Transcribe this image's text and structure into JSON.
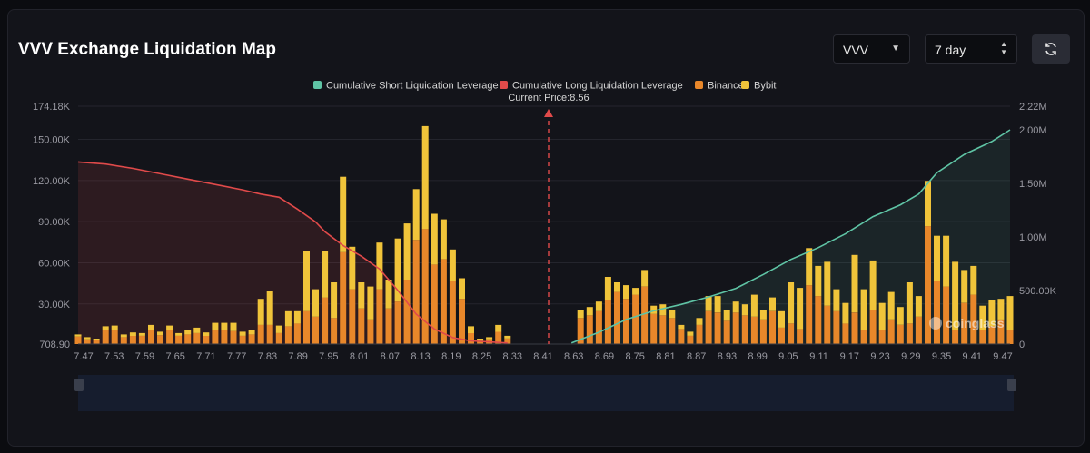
{
  "header": {
    "title": "VVV Exchange Liquidation Map",
    "symbol_select": "VVV",
    "period_select": "7 day",
    "refresh_icon": "refresh-icon"
  },
  "watermark": "coinglass",
  "colors": {
    "short_line": "#5fc4a5",
    "long_line": "#e04a4a",
    "binance": "#e8872a",
    "bybit": "#f0c43a",
    "current_price_marker": "#e04a4a"
  },
  "chart_data": {
    "type": "bar",
    "legend": [
      {
        "name": "Cumulative Short Liquidation Leverage",
        "color": "#5fc4a5"
      },
      {
        "name": "Cumulative Long Liquidation Leverage",
        "color": "#e04a4a"
      },
      {
        "name": "Binance",
        "color": "#e8872a"
      },
      {
        "name": "Bybit",
        "color": "#f0c43a"
      }
    ],
    "current_price_label": "Current Price:8.56",
    "current_price": 8.56,
    "x_tick_labels": [
      "7.47",
      "7.53",
      "7.59",
      "7.65",
      "7.71",
      "7.77",
      "7.83",
      "7.89",
      "7.95",
      "8.01",
      "8.07",
      "8.13",
      "8.19",
      "8.25",
      "8.33",
      "8.41",
      "8.63",
      "8.69",
      "8.75",
      "8.81",
      "8.87",
      "8.93",
      "8.99",
      "9.05",
      "9.11",
      "9.17",
      "9.23",
      "9.29",
      "9.35",
      "9.41",
      "9.47"
    ],
    "y_left_ticks": [
      "174.18K",
      "150.00K",
      "120.00K",
      "90.00K",
      "60.00K",
      "30.00K",
      "708.90"
    ],
    "y_left_values": [
      174180,
      150000,
      120000,
      90000,
      60000,
      30000,
      708.9
    ],
    "y_left_range": [
      708.9,
      174180
    ],
    "y_right_ticks": [
      "2.22M",
      "2.00M",
      "1.50M",
      "1.00M",
      "500.00K",
      "0"
    ],
    "y_right_values": [
      2220000,
      2000000,
      1500000,
      1000000,
      500000,
      0
    ],
    "y_right_range": [
      0,
      2220000
    ],
    "grid": true,
    "legend_position": "top-center",
    "bar_stack": [
      [
        7.47,
        5500,
        1500
      ],
      [
        7.49,
        3500,
        1500
      ],
      [
        7.51,
        3000,
        1000
      ],
      [
        7.53,
        10000,
        3000
      ],
      [
        7.55,
        10000,
        3500
      ],
      [
        7.57,
        5000,
        2000
      ],
      [
        7.59,
        6000,
        2500
      ],
      [
        7.61,
        6000,
        2000
      ],
      [
        7.63,
        10000,
        4000
      ],
      [
        7.65,
        6500,
        2500
      ],
      [
        7.67,
        10000,
        3500
      ],
      [
        7.69,
        6000,
        2000
      ],
      [
        7.71,
        7000,
        3000
      ],
      [
        7.73,
        8000,
        4000
      ],
      [
        7.75,
        6000,
        2500
      ],
      [
        7.77,
        10000,
        5500
      ],
      [
        7.79,
        10000,
        5500
      ],
      [
        7.81,
        9500,
        6000
      ],
      [
        7.83,
        6000,
        3000
      ],
      [
        7.85,
        7000,
        3000
      ],
      [
        7.87,
        14000,
        19000
      ],
      [
        7.89,
        14000,
        25000
      ],
      [
        7.91,
        8000,
        5500
      ],
      [
        7.93,
        13000,
        11000
      ],
      [
        7.95,
        15000,
        9000
      ],
      [
        7.97,
        24000,
        44000
      ],
      [
        7.99,
        20000,
        20000
      ],
      [
        8.01,
        34000,
        34000
      ],
      [
        8.03,
        19000,
        26000
      ],
      [
        8.05,
        67000,
        55000
      ],
      [
        8.07,
        40000,
        31000
      ],
      [
        8.09,
        26000,
        19000
      ],
      [
        8.11,
        18000,
        24000
      ],
      [
        8.13,
        40000,
        34000
      ],
      [
        8.15,
        26000,
        21000
      ],
      [
        8.17,
        31000,
        46000
      ],
      [
        8.19,
        47000,
        41000
      ],
      [
        8.21,
        76000,
        37000
      ],
      [
        8.23,
        84000,
        75000
      ],
      [
        8.25,
        58000,
        37000
      ],
      [
        8.27,
        62000,
        29000
      ],
      [
        8.29,
        46000,
        23000
      ],
      [
        8.31,
        33000,
        15000
      ],
      [
        8.33,
        8000,
        5000
      ],
      [
        8.35,
        2500,
        1500
      ],
      [
        8.37,
        3500,
        1500
      ],
      [
        8.39,
        9000,
        5000
      ],
      [
        8.41,
        4000,
        2000
      ],
      [
        8.57,
        19000,
        6000
      ],
      [
        8.59,
        21000,
        6000
      ],
      [
        8.61,
        24000,
        7000
      ],
      [
        8.63,
        32000,
        17000
      ],
      [
        8.65,
        38000,
        7000
      ],
      [
        8.67,
        33000,
        10000
      ],
      [
        8.69,
        36000,
        5000
      ],
      [
        8.71,
        42000,
        12000
      ],
      [
        8.73,
        22000,
        6000
      ],
      [
        8.75,
        21000,
        8000
      ],
      [
        8.77,
        19000,
        6000
      ],
      [
        8.79,
        11000,
        3000
      ],
      [
        8.81,
        6000,
        3000
      ],
      [
        8.83,
        14000,
        5000
      ],
      [
        8.85,
        24000,
        11000
      ],
      [
        8.87,
        23000,
        12000
      ],
      [
        8.89,
        17000,
        8000
      ],
      [
        8.91,
        23000,
        8000
      ],
      [
        8.93,
        21000,
        8000
      ],
      [
        8.95,
        20000,
        16000
      ],
      [
        8.97,
        18000,
        7000
      ],
      [
        8.99,
        24000,
        10000
      ],
      [
        9.01,
        12000,
        12000
      ],
      [
        9.03,
        15000,
        30000
      ],
      [
        9.05,
        11000,
        30000
      ],
      [
        9.07,
        43000,
        27000
      ],
      [
        9.09,
        35000,
        22000
      ],
      [
        9.11,
        28000,
        32000
      ],
      [
        9.13,
        24000,
        16000
      ],
      [
        9.15,
        15000,
        15000
      ],
      [
        9.17,
        23000,
        42000
      ],
      [
        9.19,
        10000,
        30000
      ],
      [
        9.21,
        25000,
        36000
      ],
      [
        9.23,
        10000,
        20000
      ],
      [
        9.25,
        18000,
        20000
      ],
      [
        9.27,
        14000,
        13000
      ],
      [
        9.29,
        15000,
        30000
      ],
      [
        9.31,
        20000,
        15000
      ],
      [
        9.33,
        86000,
        33000
      ],
      [
        9.35,
        46000,
        33000
      ],
      [
        9.37,
        42000,
        37000
      ],
      [
        9.39,
        10000,
        50000
      ],
      [
        9.41,
        30000,
        24000
      ],
      [
        9.43,
        36000,
        21000
      ],
      [
        9.45,
        10000,
        18000
      ],
      [
        9.47,
        13000,
        19000
      ],
      [
        9.49,
        18000,
        15000
      ],
      [
        9.51,
        10000,
        25000
      ]
    ],
    "long_cumulative": {
      "x": [
        7.47,
        7.53,
        7.59,
        7.65,
        7.71,
        7.77,
        7.83,
        7.87,
        7.91,
        7.95,
        7.99,
        8.01,
        8.05,
        8.09,
        8.13,
        8.17,
        8.21,
        8.25,
        8.29,
        8.33,
        8.37,
        8.41
      ],
      "y": [
        1700000,
        1680000,
        1640000,
        1590000,
        1540000,
        1490000,
        1440000,
        1400000,
        1370000,
        1260000,
        1140000,
        1050000,
        920000,
        820000,
        700000,
        500000,
        280000,
        140000,
        60000,
        30000,
        20000,
        10000
      ]
    },
    "short_cumulative": {
      "x": [
        8.55,
        8.61,
        8.67,
        8.73,
        8.79,
        8.85,
        8.91,
        8.97,
        9.03,
        9.09,
        9.15,
        9.21,
        9.27,
        9.31,
        9.35,
        9.41,
        9.47,
        9.51
      ],
      "y": [
        10000,
        110000,
        230000,
        310000,
        370000,
        440000,
        520000,
        650000,
        790000,
        900000,
        1030000,
        1190000,
        1300000,
        1400000,
        1600000,
        1770000,
        1890000,
        2000000
      ]
    }
  }
}
